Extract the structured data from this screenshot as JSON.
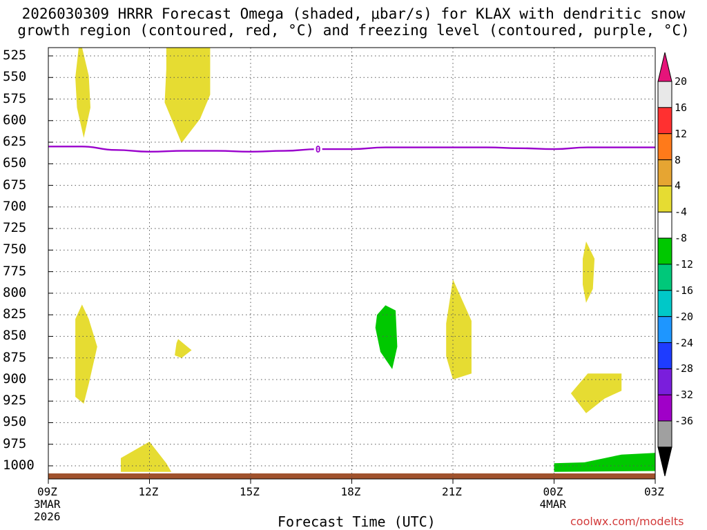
{
  "chart_data": {
    "type": "time-height",
    "title_line1": "2026030309 HRRR Forecast Omega (shaded, μbar/s) for KLAX with dendritic snow",
    "title_line2": "growth region (contoured, red, °C) and freezing level (contoured, purple, °C)",
    "xlabel": "Forecast Time (UTC)",
    "credit": "coolwx.com/modelts",
    "xlim_hours": [
      0,
      18
    ],
    "ylim_hPa": [
      515,
      1012
    ],
    "x_ticks": [
      {
        "h": 0,
        "label": "09Z",
        "date": "3MAR",
        "year": "2026"
      },
      {
        "h": 3,
        "label": "12Z"
      },
      {
        "h": 6,
        "label": "15Z"
      },
      {
        "h": 9,
        "label": "18Z"
      },
      {
        "h": 12,
        "label": "21Z"
      },
      {
        "h": 15,
        "label": "00Z",
        "date": "4MAR"
      },
      {
        "h": 18,
        "label": "03Z"
      }
    ],
    "y_ticks": [
      525,
      550,
      575,
      600,
      625,
      650,
      675,
      700,
      725,
      750,
      775,
      800,
      825,
      850,
      875,
      900,
      925,
      950,
      975,
      1000
    ],
    "freezing_level": {
      "label": "0",
      "color": "#9900cc",
      "points": [
        [
          0,
          630
        ],
        [
          1,
          630
        ],
        [
          2,
          634
        ],
        [
          3,
          636
        ],
        [
          4,
          635
        ],
        [
          5,
          635
        ],
        [
          6,
          636
        ],
        [
          7,
          635
        ],
        [
          8,
          633
        ],
        [
          9,
          633
        ],
        [
          10,
          631
        ],
        [
          11,
          631
        ],
        [
          12,
          631
        ],
        [
          13,
          631
        ],
        [
          14,
          632
        ],
        [
          15,
          633
        ],
        [
          16,
          631
        ],
        [
          17,
          631
        ],
        [
          18,
          631
        ]
      ]
    },
    "omega_regions": [
      {
        "value_bin": "4 to 8",
        "color": "#e6dc32",
        "points": [
          [
            1.0,
            515
          ],
          [
            1.2,
            548
          ],
          [
            1.25,
            585
          ],
          [
            1.05,
            620
          ],
          [
            0.85,
            585
          ],
          [
            0.8,
            550
          ],
          [
            0.9,
            515
          ]
        ]
      },
      {
        "value_bin": "4 to 8",
        "color": "#e6dc32",
        "points": [
          [
            3.5,
            515
          ],
          [
            4.8,
            515
          ],
          [
            4.8,
            570
          ],
          [
            4.5,
            598
          ],
          [
            3.95,
            626
          ],
          [
            3.45,
            579
          ],
          [
            3.5,
            540
          ]
        ]
      },
      {
        "value_bin": "4 to 8",
        "color": "#e6dc32",
        "points": [
          [
            1.0,
            813
          ],
          [
            1.2,
            830
          ],
          [
            1.45,
            862
          ],
          [
            1.2,
            905
          ],
          [
            1.05,
            928
          ],
          [
            0.8,
            920
          ],
          [
            0.8,
            830
          ]
        ]
      },
      {
        "value_bin": "4 to 8",
        "color": "#e6dc32",
        "points": [
          [
            3.85,
            853
          ],
          [
            4.0,
            858
          ],
          [
            4.25,
            866
          ],
          [
            3.95,
            875
          ],
          [
            3.75,
            872
          ],
          [
            3.8,
            858
          ]
        ]
      },
      {
        "value_bin": "4 to 8",
        "color": "#e6dc32",
        "points": [
          [
            2.15,
            991
          ],
          [
            3.0,
            972
          ],
          [
            3.5,
            997
          ],
          [
            3.65,
            1007
          ],
          [
            2.15,
            1007
          ]
        ]
      },
      {
        "value_bin": "4 to 8",
        "color": "#e6dc32",
        "points": [
          [
            12.0,
            784
          ],
          [
            12.55,
            832
          ],
          [
            12.55,
            893
          ],
          [
            12.0,
            900
          ],
          [
            11.8,
            873
          ],
          [
            11.8,
            835
          ]
        ]
      },
      {
        "value_bin": "4 to 8",
        "color": "#e6dc32",
        "points": [
          [
            15.95,
            740
          ],
          [
            16.2,
            760
          ],
          [
            16.15,
            795
          ],
          [
            15.95,
            811
          ],
          [
            15.85,
            790
          ],
          [
            15.85,
            760
          ]
        ]
      },
      {
        "value_bin": "4 to 8",
        "color": "#e6dc32",
        "points": [
          [
            16.0,
            893
          ],
          [
            17.0,
            893
          ],
          [
            17.0,
            913
          ],
          [
            16.5,
            922
          ],
          [
            15.95,
            939
          ],
          [
            15.5,
            916
          ]
        ]
      },
      {
        "value_bin": "-8 to -4",
        "color": "#00c800",
        "points": [
          [
            10.0,
            814
          ],
          [
            10.3,
            820
          ],
          [
            10.35,
            862
          ],
          [
            10.2,
            888
          ],
          [
            9.85,
            868
          ],
          [
            9.7,
            840
          ],
          [
            9.75,
            825
          ]
        ]
      },
      {
        "value_bin": "-8 to -4",
        "color": "#00c800",
        "points": [
          [
            15.0,
            997
          ],
          [
            15.9,
            996
          ],
          [
            17.0,
            987
          ],
          [
            18.0,
            985
          ],
          [
            18.0,
            1006
          ],
          [
            15.0,
            1007
          ]
        ]
      }
    ],
    "surface_strip_color": "#a0522d",
    "colorbar": {
      "labels": [
        "20",
        "16",
        "12",
        "8",
        "4",
        "-4",
        "-8",
        "-12",
        "-16",
        "-20",
        "-24",
        "-28",
        "-32",
        "-36"
      ],
      "colors": [
        "#e8e8e8",
        "#ff3030",
        "#ff7a1a",
        "#e6a532",
        "#e6dc32",
        "#ffffff",
        "#00c800",
        "#00c87a",
        "#00c8c8",
        "#1e96ff",
        "#1e3cff",
        "#7a1edc",
        "#a000c8",
        "#a0a0a0"
      ],
      "top_cap_color": "#e6147a",
      "bottom_cap_color": "#000000"
    }
  }
}
